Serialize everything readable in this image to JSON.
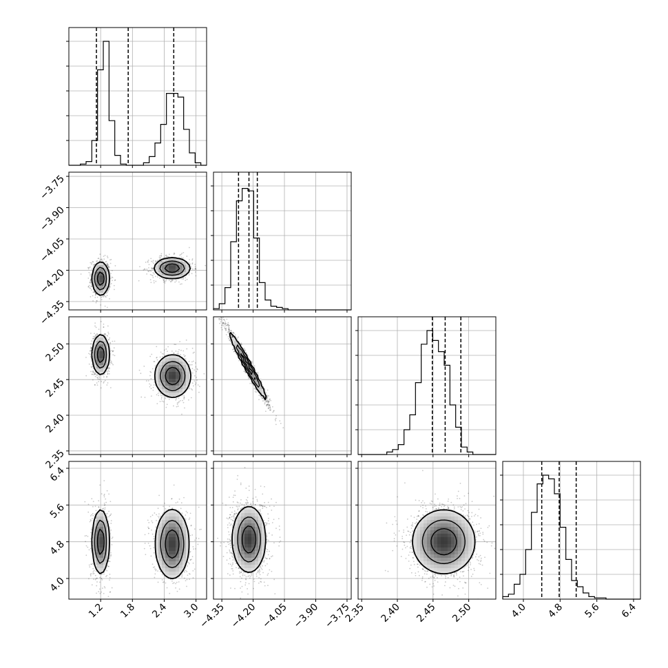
{
  "chart_data": {
    "type": "corner",
    "variables": [
      {
        "range": [
          0.6,
          3.2
        ],
        "ticks": [
          1.2,
          1.8,
          2.4,
          3.0
        ],
        "tick_labels": [
          "1.2",
          "1.8",
          "2.4",
          "3.0"
        ]
      },
      {
        "range": [
          -4.39,
          -3.73
        ],
        "ticks": [
          -4.35,
          -4.2,
          -4.05,
          -3.9,
          -3.75
        ],
        "tick_labels": [
          "−4.35",
          "−4.20",
          "−4.05",
          "−3.90",
          "−3.75"
        ]
      },
      {
        "range": [
          2.345,
          2.538
        ],
        "ticks": [
          2.35,
          2.4,
          2.45,
          2.5
        ],
        "tick_labels": [
          "2.35",
          "2.40",
          "2.45",
          "2.50"
        ]
      },
      {
        "range": [
          3.55,
          6.55
        ],
        "ticks": [
          4.0,
          4.8,
          5.6,
          6.4
        ],
        "tick_labels": [
          "4.0",
          "4.8",
          "5.6",
          "6.4"
        ]
      }
    ],
    "grid": true,
    "quantiles": [
      [
        1.12,
        1.72,
        2.58
      ],
      [
        -4.27,
        -4.22,
        -4.18
      ],
      [
        2.449,
        2.467,
        2.489
      ],
      [
        4.4,
        4.78,
        5.15
      ]
    ],
    "histograms": [
      [
        0,
        0,
        0.01,
        0.03,
        0.2,
        0.77,
        1.0,
        0.36,
        0.08,
        0.01,
        0,
        0,
        0,
        0.02,
        0.07,
        0.18,
        0.33,
        0.58,
        0.58,
        0.55,
        0.29,
        0.1,
        0.02,
        0
      ],
      [
        0.01,
        0.05,
        0.18,
        0.55,
        0.88,
        0.98,
        0.96,
        0.58,
        0.22,
        0.08,
        0.03,
        0.02,
        0.01,
        0,
        0,
        0,
        0,
        0,
        0,
        0,
        0,
        0,
        0,
        0
      ],
      [
        0,
        0,
        0,
        0,
        0,
        0.02,
        0.04,
        0.08,
        0.2,
        0.32,
        0.58,
        0.89,
        1.0,
        0.92,
        0.83,
        0.72,
        0.4,
        0.22,
        0.06,
        0.02,
        0,
        0,
        0,
        0
      ],
      [
        0.02,
        0.04,
        0.12,
        0.2,
        0.4,
        0.7,
        0.93,
        1.0,
        0.97,
        0.85,
        0.58,
        0.32,
        0.15,
        0.1,
        0.05,
        0.02,
        0.01,
        0.01,
        0,
        0,
        0,
        0,
        0,
        0
      ]
    ],
    "pair_densities": [
      {
        "x_var": 0,
        "y_var": 1,
        "modes": [
          {
            "mean": [
              1.2,
              -4.24
            ],
            "sd": [
              0.08,
              0.04
            ],
            "rho": 0,
            "weight": 0.5
          },
          {
            "mean": [
              2.55,
              -4.19
            ],
            "sd": [
              0.17,
              0.025
            ],
            "rho": 0,
            "weight": 0.5
          }
        ]
      },
      {
        "x_var": 0,
        "y_var": 2,
        "modes": [
          {
            "mean": [
              1.2,
              2.485
            ],
            "sd": [
              0.08,
              0.014
            ],
            "rho": 0,
            "weight": 0.5
          },
          {
            "mean": [
              2.56,
              2.455
            ],
            "sd": [
              0.17,
              0.015
            ],
            "rho": 0,
            "weight": 0.5
          }
        ]
      },
      {
        "x_var": 1,
        "y_var": 2,
        "modes": [
          {
            "mean": [
              -4.225,
              2.469
            ],
            "sd": [
              0.045,
              0.024
            ],
            "rho": -0.98,
            "weight": 1.0
          }
        ]
      },
      {
        "x_var": 0,
        "y_var": 3,
        "modes": [
          {
            "mean": [
              1.2,
              4.8
            ],
            "sd": [
              0.08,
              0.35
            ],
            "rho": 0,
            "weight": 0.5
          },
          {
            "mean": [
              2.55,
              4.75
            ],
            "sd": [
              0.16,
              0.38
            ],
            "rho": 0,
            "weight": 0.5
          }
        ]
      },
      {
        "x_var": 1,
        "y_var": 3,
        "modes": [
          {
            "mean": [
              -4.22,
              4.85
            ],
            "sd": [
              0.04,
              0.36
            ],
            "rho": 0,
            "weight": 1.0
          }
        ]
      },
      {
        "x_var": 2,
        "y_var": 3,
        "modes": [
          {
            "mean": [
              2.465,
              4.8
            ],
            "sd": [
              0.022,
              0.35
            ],
            "rho": 0,
            "weight": 1.0
          }
        ]
      }
    ],
    "title": "",
    "axis_labels": [
      "",
      "",
      "",
      ""
    ]
  }
}
